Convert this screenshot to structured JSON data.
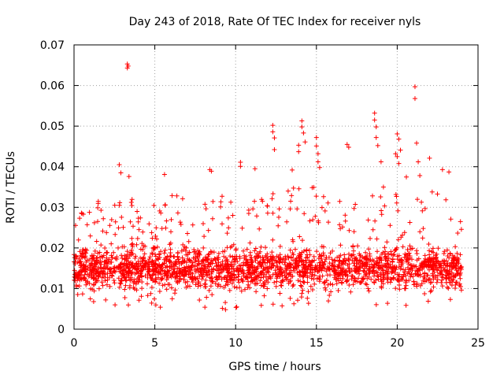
{
  "chart_data": {
    "type": "scatter",
    "title": "Day 243 of 2018, Rate Of TEC Index for receiver nyls",
    "xlabel": "GPS time / hours",
    "ylabel": "ROTI / TECUs",
    "xlim": [
      0,
      25
    ],
    "ylim": [
      0,
      0.07
    ],
    "grid": true,
    "marker": "+",
    "marker_color": "#ff0000",
    "x_ticks": [
      0,
      5,
      10,
      15,
      20,
      25
    ],
    "y_ticks": [
      0,
      0.01,
      0.02,
      0.03,
      0.04,
      0.05,
      0.06,
      0.07
    ],
    "x_tick_labels": [
      "0",
      "5",
      "10",
      "15",
      "20",
      "25"
    ],
    "y_tick_labels": [
      "0",
      "0.01",
      "0.02",
      "0.03",
      "0.04",
      "0.05",
      "0.06",
      "0.07"
    ],
    "series": [
      {
        "name": "ROTI",
        "density_profile": {
          "x_range": [
            0,
            24
          ],
          "typical_band": [
            0.008,
            0.022
          ],
          "upper_envelope": [
            [
              0.0,
              0.026
            ],
            [
              1.0,
              0.032
            ],
            [
              2.0,
              0.031
            ],
            [
              2.8,
              0.035
            ],
            [
              3.5,
              0.032
            ],
            [
              4.5,
              0.033
            ],
            [
              5.5,
              0.032
            ],
            [
              6.5,
              0.034
            ],
            [
              7.5,
              0.033
            ],
            [
              8.5,
              0.034
            ],
            [
              9.5,
              0.034
            ],
            [
              10.5,
              0.035
            ],
            [
              11.5,
              0.035
            ],
            [
              12.5,
              0.036
            ],
            [
              13.5,
              0.037
            ],
            [
              14.5,
              0.036
            ],
            [
              15.5,
              0.035
            ],
            [
              16.5,
              0.034
            ],
            [
              17.5,
              0.033
            ],
            [
              18.5,
              0.034
            ],
            [
              19.5,
              0.037
            ],
            [
              20.5,
              0.038
            ],
            [
              21.5,
              0.036
            ],
            [
              22.5,
              0.034
            ],
            [
              23.5,
              0.032
            ],
            [
              24.0,
              0.028
            ]
          ],
          "lower_envelope": [
            [
              0.0,
              0.008
            ],
            [
              2.0,
              0.006
            ],
            [
              4.0,
              0.005
            ],
            [
              6.0,
              0.005
            ],
            [
              8.0,
              0.005
            ],
            [
              10.0,
              0.004
            ],
            [
              12.0,
              0.005
            ],
            [
              14.0,
              0.005
            ],
            [
              16.0,
              0.005
            ],
            [
              18.0,
              0.005
            ],
            [
              20.0,
              0.005
            ],
            [
              22.0,
              0.006
            ],
            [
              24.0,
              0.007
            ]
          ]
        },
        "outliers": [
          [
            2.8,
            0.0405
          ],
          [
            2.9,
            0.0385
          ],
          [
            3.3,
            0.0653
          ],
          [
            3.3,
            0.0643
          ],
          [
            3.35,
            0.0648
          ],
          [
            3.4,
            0.0376
          ],
          [
            5.6,
            0.0381
          ],
          [
            8.4,
            0.0393
          ],
          [
            8.5,
            0.0389
          ],
          [
            10.3,
            0.0411
          ],
          [
            10.3,
            0.0401
          ],
          [
            11.2,
            0.0395
          ],
          [
            12.3,
            0.0502
          ],
          [
            12.3,
            0.0486
          ],
          [
            12.4,
            0.0471
          ],
          [
            12.4,
            0.0442
          ],
          [
            13.5,
            0.0392
          ],
          [
            13.9,
            0.0453
          ],
          [
            13.9,
            0.0437
          ],
          [
            14.1,
            0.0513
          ],
          [
            14.1,
            0.0498
          ],
          [
            14.2,
            0.0483
          ],
          [
            14.3,
            0.0461
          ],
          [
            15.0,
            0.0472
          ],
          [
            15.0,
            0.0451
          ],
          [
            15.1,
            0.0432
          ],
          [
            15.1,
            0.0412
          ],
          [
            15.2,
            0.0398
          ],
          [
            16.9,
            0.0455
          ],
          [
            17.0,
            0.0448
          ],
          [
            18.6,
            0.0532
          ],
          [
            18.6,
            0.0515
          ],
          [
            18.7,
            0.0498
          ],
          [
            18.7,
            0.0472
          ],
          [
            18.8,
            0.0452
          ],
          [
            19.0,
            0.0412
          ],
          [
            19.9,
            0.0432
          ],
          [
            20.0,
            0.0481
          ],
          [
            20.0,
            0.0425
          ],
          [
            20.1,
            0.0468
          ],
          [
            20.1,
            0.0408
          ],
          [
            20.2,
            0.0441
          ],
          [
            21.1,
            0.0597
          ],
          [
            21.1,
            0.0568
          ],
          [
            21.2,
            0.0458
          ],
          [
            21.3,
            0.0412
          ],
          [
            21.4,
            0.0378
          ],
          [
            22.0,
            0.0421
          ],
          [
            22.8,
            0.0393
          ],
          [
            23.2,
            0.0387
          ]
        ]
      }
    ]
  }
}
